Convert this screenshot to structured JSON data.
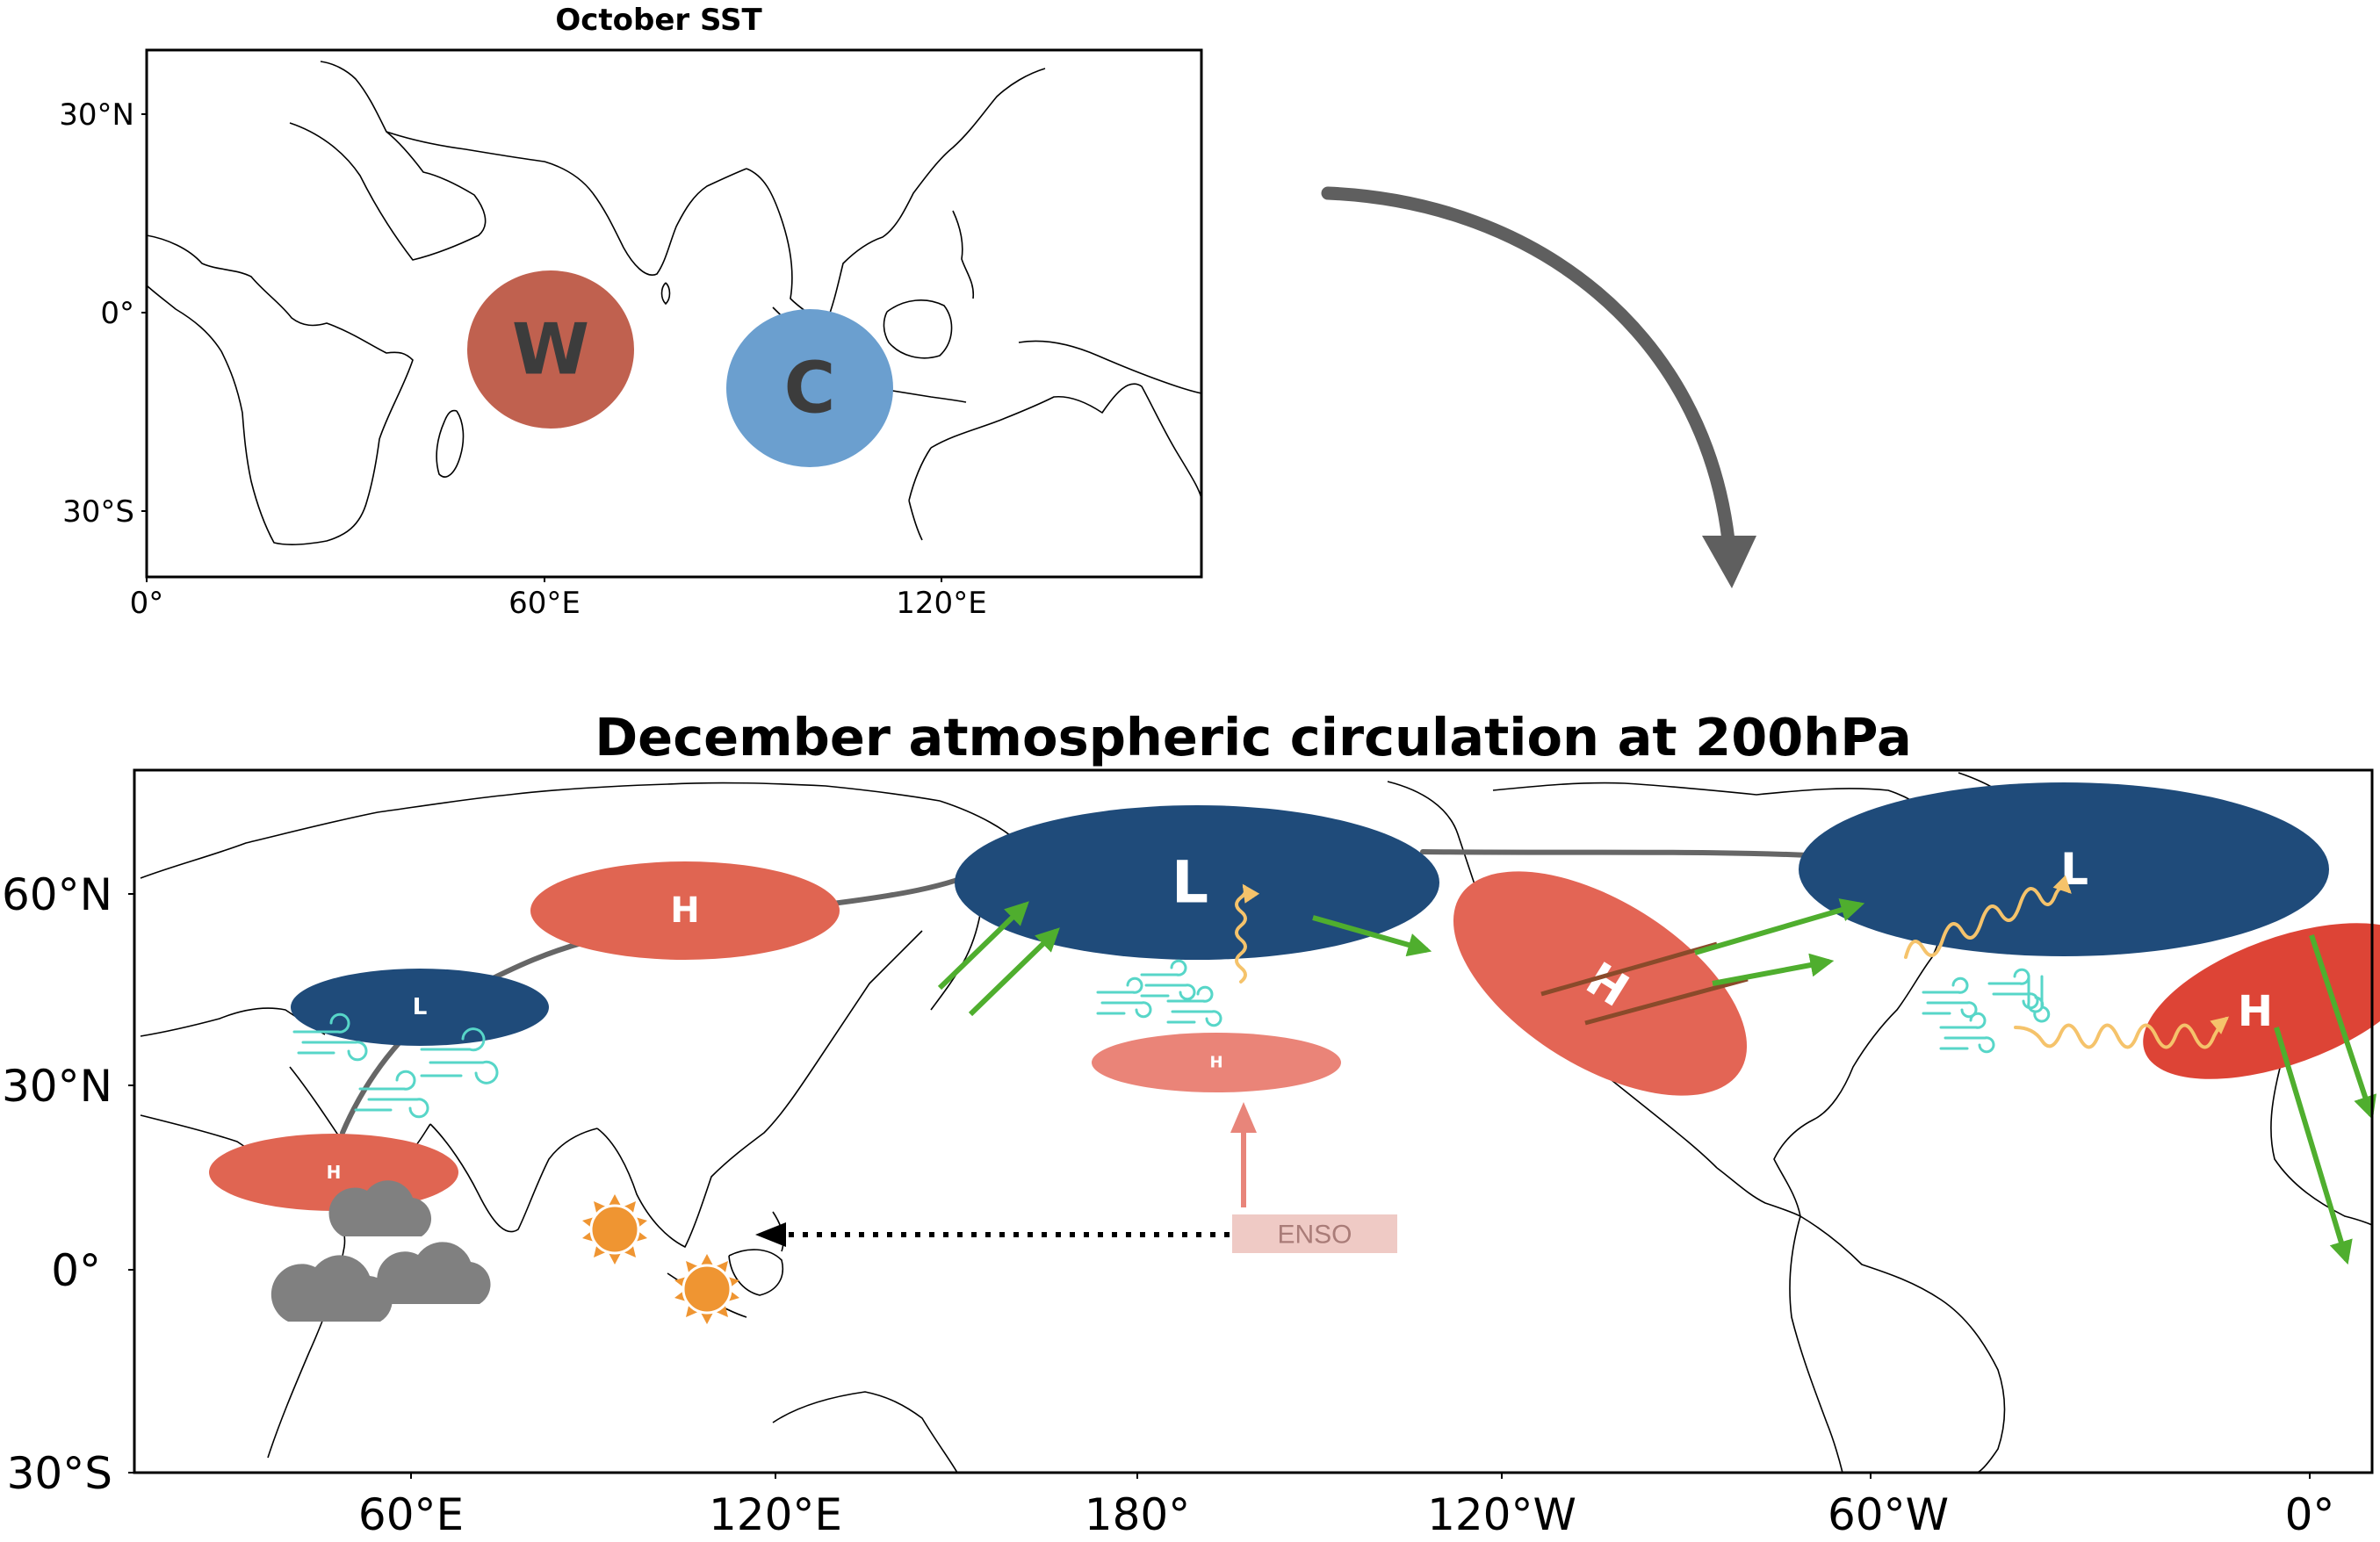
{
  "top_panel": {
    "title": "October SST",
    "y_ticks": [
      "30°N",
      "0°",
      "30°S"
    ],
    "x_ticks": [
      "0°",
      "60°E",
      "120°E"
    ],
    "anomalies": [
      {
        "label": "W",
        "meaning": "warm",
        "color": "#c0614f"
      },
      {
        "label": "C",
        "meaning": "cold",
        "color": "#6b9fcf"
      }
    ]
  },
  "bottom_panel": {
    "title": "December atmospheric circulation at 200hPa",
    "y_ticks": [
      "60°N",
      "30°N",
      "0°",
      "30°S"
    ],
    "x_ticks": [
      "60°E",
      "120°E",
      "180°",
      "120°W",
      "60°W",
      "0°"
    ],
    "centers": [
      {
        "label": "H",
        "color": "#e06552"
      },
      {
        "label": "L",
        "color": "#1f4b7a"
      },
      {
        "label": "H",
        "color": "#e06552"
      },
      {
        "label": "L",
        "color": "#1f4b7a"
      },
      {
        "label": "H",
        "color": "#ea8478"
      },
      {
        "label": "H",
        "color": "#e36555"
      },
      {
        "label": "L",
        "color": "#1f4b7a"
      },
      {
        "label": "H",
        "color": "#dd4436"
      }
    ],
    "enso_label": "ENSO",
    "colors": {
      "wave_train": "#666666",
      "wind_arrows": "#4fae2e",
      "wind_lines": "#57d6c8",
      "wave_activity": "#f5c36b",
      "sun": "#ef9532",
      "cloud": "#808080",
      "enso_box": "#efcac5",
      "enso_arrow": "#e8857a"
    }
  },
  "transition_arrow_color": "#5f5f5f"
}
